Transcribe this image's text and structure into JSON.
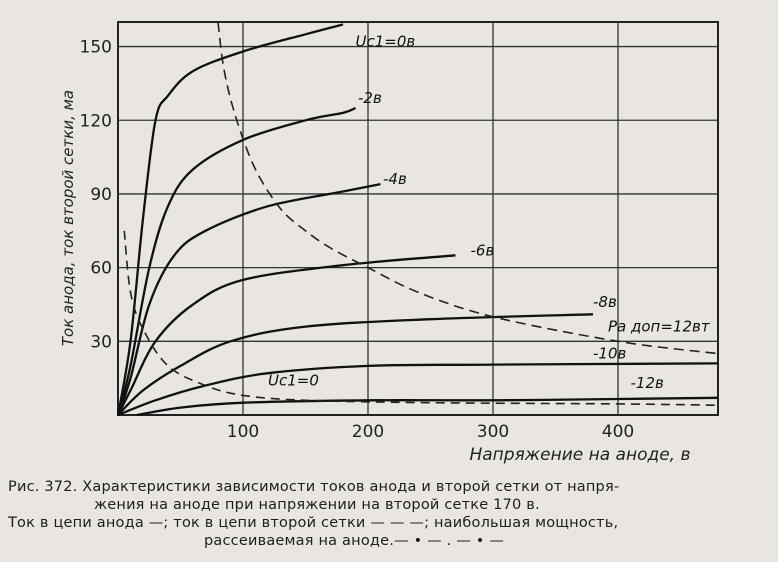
{
  "chart_data": {
    "type": "line",
    "ylabel": "Ток анода, ток второй сетки, ма",
    "xlabel": "Напряжение на аноде, в",
    "xlim": [
      0,
      480
    ],
    "ylim": [
      0,
      160
    ],
    "xticks": [
      100,
      200,
      300,
      400
    ],
    "yticks": [
      30,
      60,
      90,
      120,
      150
    ],
    "grid": true,
    "anode_current_series": [
      {
        "name": "Uc1=0в",
        "points": [
          [
            0,
            0
          ],
          [
            10,
            30
          ],
          [
            20,
            80
          ],
          [
            30,
            120
          ],
          [
            40,
            130
          ],
          [
            60,
            140
          ],
          [
            100,
            148
          ],
          [
            150,
            155
          ],
          [
            180,
            159
          ]
        ]
      },
      {
        "name": "-2в",
        "points": [
          [
            0,
            0
          ],
          [
            10,
            20
          ],
          [
            25,
            60
          ],
          [
            40,
            85
          ],
          [
            60,
            100
          ],
          [
            100,
            112
          ],
          [
            150,
            120
          ],
          [
            180,
            123
          ],
          [
            190,
            125
          ]
        ]
      },
      {
        "name": "-4в",
        "points": [
          [
            0,
            0
          ],
          [
            10,
            15
          ],
          [
            25,
            45
          ],
          [
            45,
            65
          ],
          [
            70,
            75
          ],
          [
            120,
            85
          ],
          [
            180,
            91
          ],
          [
            210,
            94
          ]
        ]
      },
      {
        "name": "-6в",
        "points": [
          [
            0,
            0
          ],
          [
            10,
            10
          ],
          [
            30,
            30
          ],
          [
            60,
            45
          ],
          [
            100,
            55
          ],
          [
            180,
            61
          ],
          [
            270,
            65
          ]
        ]
      },
      {
        "name": "-8в",
        "points": [
          [
            0,
            0
          ],
          [
            20,
            10
          ],
          [
            50,
            20
          ],
          [
            90,
            30
          ],
          [
            150,
            36
          ],
          [
            250,
            39
          ],
          [
            380,
            41
          ]
        ]
      },
      {
        "name": "-10в",
        "points": [
          [
            0,
            0
          ],
          [
            30,
            6
          ],
          [
            70,
            12
          ],
          [
            120,
            17
          ],
          [
            200,
            20
          ],
          [
            300,
            20.5
          ],
          [
            480,
            21
          ]
        ]
      },
      {
        "name": "-12в",
        "points": [
          [
            15,
            0
          ],
          [
            50,
            3
          ],
          [
            100,
            5
          ],
          [
            200,
            6
          ],
          [
            300,
            6
          ],
          [
            400,
            6.5
          ],
          [
            480,
            7
          ]
        ]
      }
    ],
    "screen_grid_current": [
      {
        "name": "Uc1=0",
        "points": [
          [
            5,
            75
          ],
          [
            10,
            50
          ],
          [
            20,
            35
          ],
          [
            40,
            20
          ],
          [
            70,
            12
          ],
          [
            100,
            8
          ],
          [
            150,
            6
          ],
          [
            250,
            5
          ],
          [
            400,
            4.5
          ],
          [
            480,
            4
          ]
        ]
      }
    ],
    "max_dissipation": {
      "name": "Ра доп=12вт",
      "points": [
        [
          80,
          160
        ],
        [
          85,
          140
        ],
        [
          95,
          120
        ],
        [
          110,
          100
        ],
        [
          130,
          84
        ],
        [
          150,
          75
        ],
        [
          170,
          68
        ],
        [
          200,
          60
        ],
        [
          240,
          50
        ],
        [
          300,
          40
        ],
        [
          400,
          30
        ],
        [
          480,
          25
        ]
      ]
    },
    "labels": [
      "Uc1=0в",
      "-2в",
      "-4в",
      "-6в",
      "-8в",
      "Ра доп=12вт",
      "-10в",
      "-12в",
      "Uc1=0"
    ]
  },
  "caption": {
    "line1": "Рис. 372. Характеристики зависимости токов анода и второй сетки от напря-",
    "line2": "жения на аноде при напряжении на второй сетке 170 в.",
    "line3": "Ток в цепи анода —; ток в цепи второй сетки — — —; наибольшая мощность,",
    "line4": "рассеиваемая на аноде.— • — . — • —"
  }
}
